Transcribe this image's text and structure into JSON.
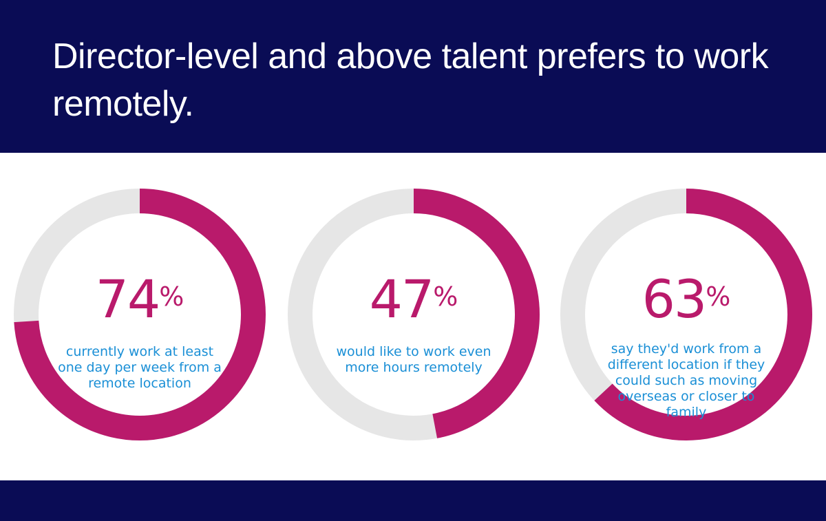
{
  "header": {
    "title": "Director-level and above talent prefers to work remotely."
  },
  "colors": {
    "navy": "#0a0c55",
    "magenta": "#b91a6b",
    "track": "#e6e6e6",
    "text_blue": "#1a8fd6"
  },
  "chart_data": {
    "type": "pie",
    "variant": "donut",
    "title": "Director-level and above talent prefers to work remotely.",
    "charts": [
      {
        "value": 74,
        "label": "74",
        "unit": "%",
        "description": "currently work at least one day per week from a remote location"
      },
      {
        "value": 47,
        "label": "47",
        "unit": "%",
        "description": "would like to work even more hours remotely"
      },
      {
        "value": 63,
        "label": "63",
        "unit": "%",
        "description": "say they'd work from a different location if they could such as moving overseas or closer to family"
      }
    ]
  }
}
